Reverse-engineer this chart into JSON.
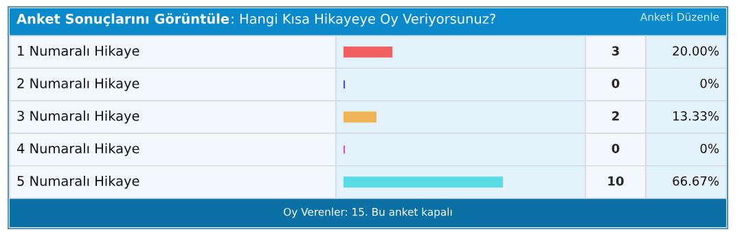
{
  "chart_data": {
    "type": "bar",
    "orientation": "horizontal",
    "title": "Anket Sonuçlarını Görüntüle",
    "subtitle": ": Hangi Kısa Hikayeye Oy Veriyorsunuz?",
    "categories": [
      "1 Numaralı Hikaye",
      "2 Numaralı Hikaye",
      "3 Numaralı Hikaye",
      "4 Numaralı Hikaye",
      "5 Numaralı Hikaye"
    ],
    "values": [
      20.0,
      0,
      13.33,
      0,
      66.67
    ],
    "colors": [
      "#f06060",
      "#4a4ad8",
      "#f0b458",
      "#e048e0",
      "#58dce4"
    ],
    "value_labels": [
      "20.00%",
      "0%",
      "13.33%",
      "0%",
      "66.67%"
    ],
    "annotations": [
      "Anketi Düzenle",
      "Oy Verenler: 15. Bu anket kapalı",
      "3",
      "0",
      "2",
      "0",
      "10"
    ]
  }
}
